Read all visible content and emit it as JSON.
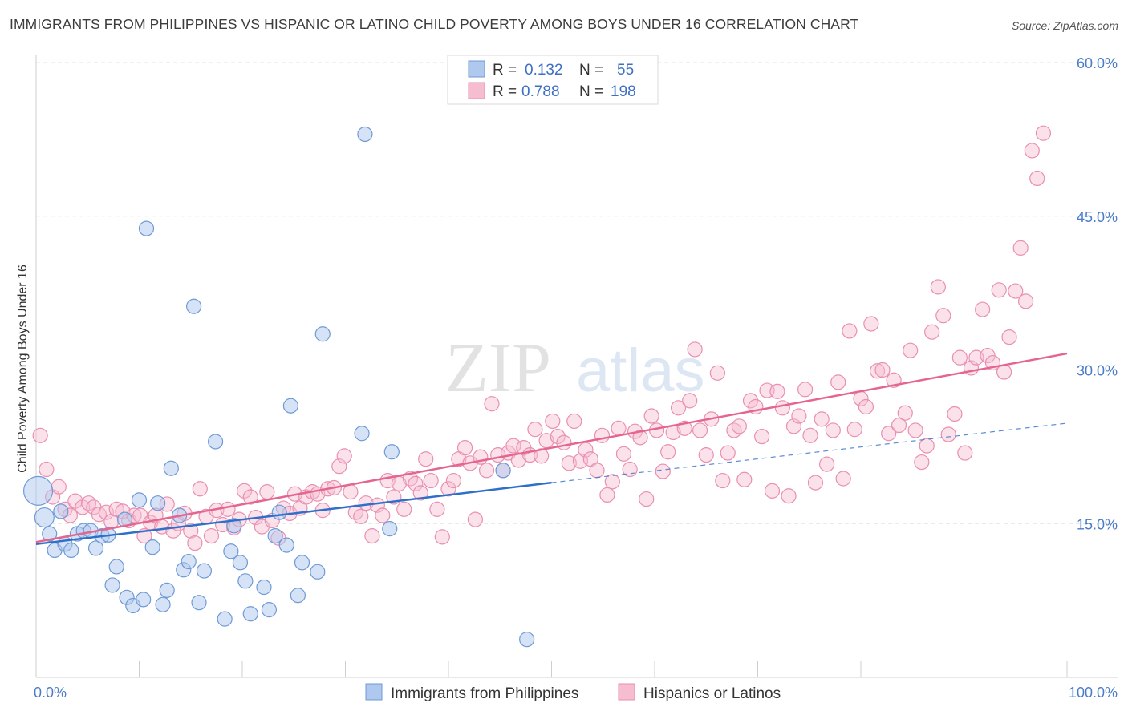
{
  "title": "IMMIGRANTS FROM PHILIPPINES VS HISPANIC OR LATINO CHILD POVERTY AMONG BOYS UNDER 16 CORRELATION CHART",
  "source": "Source: ZipAtlas.com",
  "watermark": {
    "zip": "ZIP",
    "atlas": "atlas"
  },
  "colors": {
    "blue_fill": "#aec8ee",
    "blue_stroke": "#6f9ad6",
    "blue_line": "#2f6fcc",
    "pink_fill": "#f6bcd0",
    "pink_stroke": "#e98fb0",
    "pink_line": "#e4668f",
    "tick_label": "#4a7cc9",
    "grid": "#e3e3e3"
  },
  "legend": {
    "r_label": "R =",
    "n_label": "N =",
    "rows": [
      {
        "r": "0.132",
        "n": "55",
        "color": "blue"
      },
      {
        "r": "0.788",
        "n": "198",
        "color": "pink"
      }
    ]
  },
  "chart_data": {
    "type": "scatter",
    "ylabel": "Child Poverty Among Boys Under 16",
    "xlim": [
      0,
      100
    ],
    "ylim": [
      0,
      60
    ],
    "x_ticks": [
      "0.0%",
      "100.0%"
    ],
    "y_ticks": [
      {
        "value": 15,
        "label": "15.0%"
      },
      {
        "value": 30,
        "label": "30.0%"
      },
      {
        "value": 45,
        "label": "45.0%"
      },
      {
        "value": 60,
        "label": "60.0%"
      }
    ],
    "grid": "horizontal dashed",
    "legend_position": "top-center",
    "series": [
      {
        "name": "Immigrants from Philippines",
        "color": "blue",
        "trend": {
          "x0": 0,
          "y0": 13.0,
          "x1": 50,
          "y1": 19.0,
          "dash_x1": 100,
          "dash_y1": 24.8
        },
        "points": [
          [
            0.2,
            18.2,
            3
          ],
          [
            0.8,
            15.6,
            2
          ],
          [
            1.3,
            14.0,
            1
          ],
          [
            1.8,
            12.4,
            1
          ],
          [
            2.4,
            16.2,
            1
          ],
          [
            2.8,
            13.0,
            1
          ],
          [
            3.4,
            12.4,
            1
          ],
          [
            4.0,
            14.0,
            1
          ],
          [
            4.6,
            14.3,
            1
          ],
          [
            5.3,
            14.3,
            1
          ],
          [
            5.8,
            12.6,
            1
          ],
          [
            6.4,
            13.8,
            1
          ],
          [
            7.0,
            13.9,
            1
          ],
          [
            7.4,
            9.0,
            1
          ],
          [
            7.8,
            10.8,
            1
          ],
          [
            8.6,
            15.4,
            1
          ],
          [
            8.8,
            7.8,
            1
          ],
          [
            9.4,
            7.0,
            1
          ],
          [
            10.0,
            17.3,
            1
          ],
          [
            10.4,
            7.6,
            1
          ],
          [
            10.7,
            43.8,
            1
          ],
          [
            11.3,
            12.7,
            1
          ],
          [
            11.8,
            17.0,
            1
          ],
          [
            12.3,
            7.1,
            1
          ],
          [
            12.7,
            8.5,
            1
          ],
          [
            13.1,
            20.4,
            1
          ],
          [
            13.9,
            15.8,
            1
          ],
          [
            14.3,
            10.5,
            1
          ],
          [
            14.8,
            11.3,
            1
          ],
          [
            15.3,
            36.2,
            1
          ],
          [
            15.8,
            7.3,
            1
          ],
          [
            16.3,
            10.4,
            1
          ],
          [
            17.4,
            23.0,
            1
          ],
          [
            18.3,
            5.7,
            1
          ],
          [
            18.9,
            12.3,
            1
          ],
          [
            19.2,
            14.8,
            1
          ],
          [
            19.8,
            11.2,
            1
          ],
          [
            20.3,
            9.4,
            1
          ],
          [
            20.8,
            6.2,
            1
          ],
          [
            22.1,
            8.8,
            1
          ],
          [
            22.6,
            6.6,
            1
          ],
          [
            23.2,
            13.8,
            1
          ],
          [
            23.6,
            16.1,
            1
          ],
          [
            24.3,
            12.9,
            1
          ],
          [
            24.7,
            26.5,
            1
          ],
          [
            25.4,
            8.0,
            1
          ],
          [
            25.8,
            11.2,
            1
          ],
          [
            27.3,
            10.3,
            1
          ],
          [
            27.8,
            33.5,
            1
          ],
          [
            31.6,
            23.8,
            1
          ],
          [
            31.9,
            53.0,
            1
          ],
          [
            34.3,
            14.5,
            1
          ],
          [
            34.5,
            22.0,
            1
          ],
          [
            45.3,
            20.2,
            1
          ],
          [
            47.6,
            3.7,
            1
          ]
        ]
      },
      {
        "name": "Hispanics or Latinos",
        "color": "pink",
        "trend": {
          "x0": 0,
          "y0": 13.2,
          "x1": 100,
          "y1": 31.6
        },
        "points": [
          [
            0.4,
            23.6
          ],
          [
            1.0,
            20.3
          ],
          [
            1.6,
            17.6
          ],
          [
            2.2,
            18.6
          ],
          [
            2.8,
            16.4
          ],
          [
            3.3,
            15.8
          ],
          [
            3.8,
            17.2
          ],
          [
            4.5,
            16.6
          ],
          [
            5.1,
            17.0
          ],
          [
            5.6,
            16.6
          ],
          [
            6.1,
            15.9
          ],
          [
            6.8,
            16.1
          ],
          [
            7.3,
            15.2
          ],
          [
            7.8,
            16.4
          ],
          [
            8.4,
            16.2
          ],
          [
            9.0,
            15.3
          ],
          [
            9.5,
            15.8
          ],
          [
            10.1,
            15.8
          ],
          [
            10.5,
            13.8
          ],
          [
            11.1,
            15.1
          ],
          [
            11.6,
            15.8
          ],
          [
            12.2,
            14.7
          ],
          [
            12.7,
            16.9
          ],
          [
            13.3,
            14.3
          ],
          [
            13.8,
            15.0
          ],
          [
            14.4,
            16.0
          ],
          [
            15.0,
            14.3
          ],
          [
            15.4,
            13.1
          ],
          [
            15.9,
            18.4
          ],
          [
            16.5,
            15.7
          ],
          [
            17.0,
            13.8
          ],
          [
            17.5,
            16.3
          ],
          [
            18.1,
            14.9
          ],
          [
            18.6,
            16.4
          ],
          [
            19.2,
            14.6
          ],
          [
            19.7,
            15.4
          ],
          [
            20.2,
            18.2
          ],
          [
            20.8,
            17.6
          ],
          [
            21.3,
            15.6
          ],
          [
            21.9,
            14.7
          ],
          [
            22.4,
            18.1
          ],
          [
            22.9,
            15.3
          ],
          [
            23.5,
            13.6
          ],
          [
            24.0,
            16.5
          ],
          [
            24.6,
            16.0
          ],
          [
            25.1,
            17.9
          ],
          [
            25.6,
            16.5
          ],
          [
            26.2,
            17.6
          ],
          [
            26.8,
            18.1
          ],
          [
            27.3,
            17.9
          ],
          [
            27.8,
            16.3
          ],
          [
            28.3,
            18.4
          ],
          [
            28.9,
            18.5
          ],
          [
            29.4,
            20.6
          ],
          [
            29.9,
            21.6
          ],
          [
            30.5,
            18.1
          ],
          [
            31.0,
            16.1
          ],
          [
            31.5,
            15.7
          ],
          [
            32.0,
            17.0
          ],
          [
            32.6,
            13.8
          ],
          [
            33.1,
            16.8
          ],
          [
            33.6,
            15.8
          ],
          [
            34.1,
            19.2
          ],
          [
            34.7,
            17.6
          ],
          [
            35.2,
            18.9
          ],
          [
            35.7,
            16.4
          ],
          [
            36.3,
            19.4
          ],
          [
            36.8,
            18.9
          ],
          [
            37.3,
            18.0
          ],
          [
            37.8,
            21.3
          ],
          [
            38.3,
            19.2
          ],
          [
            38.9,
            16.4
          ],
          [
            39.4,
            13.7
          ],
          [
            40.0,
            18.4
          ],
          [
            40.5,
            19.2
          ],
          [
            41.0,
            21.3
          ],
          [
            41.6,
            22.4
          ],
          [
            42.1,
            20.9
          ],
          [
            42.6,
            15.4
          ],
          [
            43.1,
            21.5
          ],
          [
            43.7,
            20.2
          ],
          [
            44.2,
            26.7
          ],
          [
            44.8,
            21.7
          ],
          [
            45.3,
            20.2
          ],
          [
            45.8,
            21.9
          ],
          [
            46.3,
            22.6
          ],
          [
            46.8,
            21.2
          ],
          [
            47.3,
            22.4
          ],
          [
            47.9,
            21.7
          ],
          [
            48.4,
            24.2
          ],
          [
            49.0,
            21.6
          ],
          [
            49.5,
            23.1
          ],
          [
            50.1,
            25.0
          ],
          [
            50.6,
            23.5
          ],
          [
            51.2,
            22.9
          ],
          [
            51.7,
            20.9
          ],
          [
            52.2,
            25.0
          ],
          [
            52.8,
            21.1
          ],
          [
            53.3,
            22.2
          ],
          [
            53.8,
            21.3
          ],
          [
            54.4,
            20.2
          ],
          [
            54.9,
            23.6
          ],
          [
            55.4,
            17.8
          ],
          [
            55.9,
            19.1
          ],
          [
            56.5,
            24.3
          ],
          [
            57.0,
            21.8
          ],
          [
            57.6,
            20.3
          ],
          [
            58.1,
            24.0
          ],
          [
            58.6,
            23.4
          ],
          [
            59.2,
            17.4
          ],
          [
            59.7,
            25.5
          ],
          [
            60.2,
            24.1
          ],
          [
            60.8,
            20.1
          ],
          [
            61.3,
            22.0
          ],
          [
            61.8,
            23.9
          ],
          [
            62.3,
            26.3
          ],
          [
            62.9,
            24.3
          ],
          [
            63.4,
            27.0
          ],
          [
            63.9,
            32.0
          ],
          [
            64.4,
            24.1
          ],
          [
            65.0,
            21.7
          ],
          [
            65.5,
            25.2
          ],
          [
            66.1,
            29.7
          ],
          [
            66.6,
            19.2
          ],
          [
            67.1,
            21.9
          ],
          [
            67.7,
            24.1
          ],
          [
            68.2,
            24.5
          ],
          [
            68.7,
            19.3
          ],
          [
            69.3,
            27.0
          ],
          [
            69.8,
            26.4
          ],
          [
            70.4,
            23.5
          ],
          [
            70.9,
            28.0
          ],
          [
            71.4,
            18.2
          ],
          [
            71.9,
            27.9
          ],
          [
            72.4,
            26.3
          ],
          [
            73.0,
            17.7
          ],
          [
            73.5,
            24.5
          ],
          [
            74.0,
            25.5
          ],
          [
            74.6,
            28.1
          ],
          [
            75.1,
            23.6
          ],
          [
            75.6,
            19.0
          ],
          [
            76.2,
            25.2
          ],
          [
            76.7,
            20.8
          ],
          [
            77.3,
            24.1
          ],
          [
            77.8,
            28.8
          ],
          [
            78.3,
            19.4
          ],
          [
            78.9,
            33.8
          ],
          [
            79.4,
            24.2
          ],
          [
            80.0,
            27.2
          ],
          [
            80.5,
            26.4
          ],
          [
            81.0,
            34.5
          ],
          [
            81.6,
            29.9
          ],
          [
            82.1,
            30.0
          ],
          [
            82.7,
            23.8
          ],
          [
            83.2,
            29.0
          ],
          [
            83.7,
            24.6
          ],
          [
            84.3,
            25.8
          ],
          [
            84.8,
            31.9
          ],
          [
            85.3,
            24.1
          ],
          [
            85.9,
            21.0
          ],
          [
            86.4,
            22.6
          ],
          [
            86.9,
            33.7
          ],
          [
            87.5,
            38.1
          ],
          [
            88.0,
            35.3
          ],
          [
            88.5,
            23.7
          ],
          [
            89.1,
            25.7
          ],
          [
            89.6,
            31.2
          ],
          [
            90.1,
            21.9
          ],
          [
            90.7,
            30.2
          ],
          [
            91.2,
            31.2
          ],
          [
            91.8,
            35.9
          ],
          [
            92.3,
            31.4
          ],
          [
            92.8,
            30.7
          ],
          [
            93.4,
            37.8
          ],
          [
            93.9,
            29.8
          ],
          [
            94.4,
            33.2
          ],
          [
            95.0,
            37.7
          ],
          [
            95.5,
            41.9
          ],
          [
            96.0,
            36.7
          ],
          [
            96.6,
            51.4
          ],
          [
            97.1,
            48.7
          ],
          [
            97.7,
            53.1
          ]
        ]
      }
    ]
  }
}
